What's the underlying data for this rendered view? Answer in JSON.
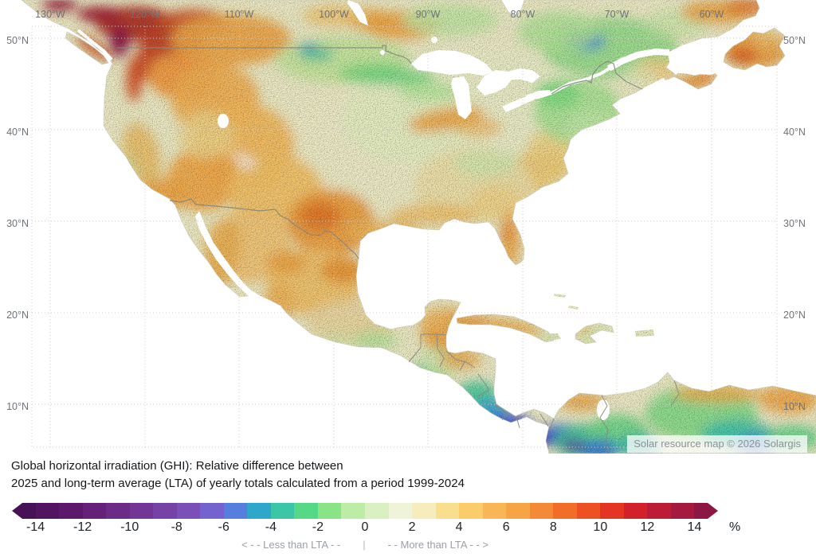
{
  "map": {
    "lon_labels": [
      "130°W",
      "120°W",
      "110°W",
      "100°W",
      "90°W",
      "80°W",
      "70°W",
      "60°W"
    ],
    "lat_labels": [
      "50°N",
      "40°N",
      "30°N",
      "20°N",
      "10°N"
    ],
    "watermark": "Solar resource map © 2026 Solargis"
  },
  "caption": {
    "line1": "Global horizontal irradiation (GHI): Relative difference between",
    "line2": "2025 and long-term average (LTA) of yearly totals calculated from a period 1999-2024"
  },
  "legend": {
    "unit": "%",
    "min": -15,
    "max": 15,
    "tick_values": [
      -14,
      -12,
      -10,
      -8,
      -6,
      -4,
      -2,
      0,
      2,
      4,
      6,
      8,
      10,
      12,
      14
    ],
    "ticks": [
      "-14",
      "-12",
      "-10",
      "-8",
      "-6",
      "-4",
      "-2",
      "0",
      "2",
      "4",
      "6",
      "8",
      "10",
      "12",
      "14"
    ],
    "colors": [
      "#471156",
      "#521460",
      "#5c196b",
      "#652179",
      "#6d2b88",
      "#733697",
      "#7742a6",
      "#7a4fb7",
      "#7463cf",
      "#567ede",
      "#2fa7cb",
      "#3cc6a8",
      "#55d987",
      "#8ae387",
      "#bdeca6",
      "#d9f0c0",
      "#eff3d8",
      "#f6ecbc",
      "#f9de8e",
      "#fbcc6a",
      "#f9b654",
      "#f7a444",
      "#f48a35",
      "#f16d28",
      "#ed5022",
      "#e33424",
      "#d2212a",
      "#bd1c36",
      "#a5193e",
      "#8c1644"
    ],
    "note_less": "< - -  Less than LTA  - -",
    "note_sep": "|",
    "note_more": "- -  More than LTA  - - >"
  }
}
